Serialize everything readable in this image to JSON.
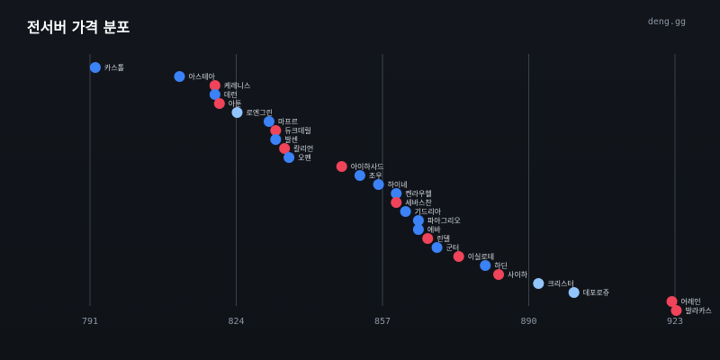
{
  "header": {
    "title": "전서버 가격 분포",
    "brand": "deng.gg"
  },
  "chart_data": {
    "type": "scatter",
    "title": "전서버 가격 분포",
    "xlabel": "",
    "ylabel": "",
    "xlim": [
      789,
      929
    ],
    "x_ticks": [
      791,
      824,
      857,
      890,
      923
    ],
    "grid": true,
    "legend": "none",
    "colors": {
      "blue": "#3b82f6",
      "red": "#ef4459",
      "light": "#93c5fd"
    },
    "points": [
      {
        "label": "카스톨",
        "x": 792.2,
        "color": "blue"
      },
      {
        "label": "아스테아",
        "x": 811.2,
        "color": "blue"
      },
      {
        "label": "케레니스",
        "x": 819.2,
        "color": "red"
      },
      {
        "label": "데런",
        "x": 819.2,
        "color": "blue"
      },
      {
        "label": "아툰",
        "x": 820.2,
        "color": "red"
      },
      {
        "label": "로엔그린",
        "x": 824.2,
        "color": "light"
      },
      {
        "label": "마프르",
        "x": 831.4,
        "color": "blue"
      },
      {
        "label": "듀크데릴",
        "x": 832.9,
        "color": "red"
      },
      {
        "label": "발센",
        "x": 832.9,
        "color": "blue"
      },
      {
        "label": "칼리언",
        "x": 834.9,
        "color": "red"
      },
      {
        "label": "오펜",
        "x": 835.9,
        "color": "blue"
      },
      {
        "label": "아이하사드",
        "x": 847.8,
        "color": "red"
      },
      {
        "label": "조우",
        "x": 851.9,
        "color": "blue"
      },
      {
        "label": "하이네",
        "x": 856.1,
        "color": "blue"
      },
      {
        "label": "켄라우헬",
        "x": 860.1,
        "color": "blue"
      },
      {
        "label": "세바스찬",
        "x": 860.1,
        "color": "red"
      },
      {
        "label": "기드리아",
        "x": 862.2,
        "color": "blue"
      },
      {
        "label": "파아그리오",
        "x": 865.1,
        "color": "blue"
      },
      {
        "label": "에바",
        "x": 865.1,
        "color": "blue"
      },
      {
        "label": "린델",
        "x": 867.2,
        "color": "red"
      },
      {
        "label": "군터",
        "x": 869.3,
        "color": "blue"
      },
      {
        "label": "이실로테",
        "x": 874.2,
        "color": "red"
      },
      {
        "label": "하딘",
        "x": 880.2,
        "color": "blue"
      },
      {
        "label": "사이하",
        "x": 883.2,
        "color": "red"
      },
      {
        "label": "크리스터",
        "x": 892.2,
        "color": "light"
      },
      {
        "label": "데포로쥬",
        "x": 900.2,
        "color": "light"
      },
      {
        "label": "어레인",
        "x": 922.3,
        "color": "red"
      },
      {
        "label": "발라카스",
        "x": 923.3,
        "color": "red"
      }
    ]
  }
}
